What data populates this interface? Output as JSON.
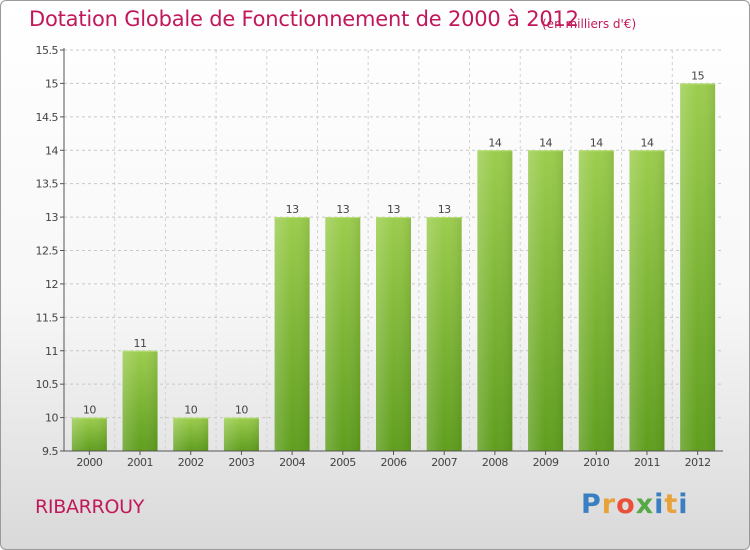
{
  "header": {
    "title": "Dotation Globale de Fonctionnement de 2000 à 2012",
    "unit": "(en milliers d'€)"
  },
  "footer": {
    "town": "RIBARROUY",
    "logo": "Proxiti",
    "logo_colors": [
      "#3a7fc1",
      "#e8a23a",
      "#e8503a",
      "#57a846",
      "#3a7fc1",
      "#e8a23a",
      "#3a7fc1"
    ]
  },
  "colors": {
    "bar_top": "#9ccd4e",
    "bar_bottom": "#5f9e1e",
    "title": "#c2185b",
    "axis": "#555555"
  },
  "chart_data": {
    "type": "bar",
    "categories": [
      "2000",
      "2001",
      "2002",
      "2003",
      "2004",
      "2005",
      "2006",
      "2007",
      "2008",
      "2009",
      "2010",
      "2011",
      "2012"
    ],
    "values": [
      10,
      11,
      10,
      10,
      13,
      13,
      13,
      13,
      14,
      14,
      14,
      14,
      15
    ],
    "data_labels": [
      "10",
      "11",
      "10",
      "10",
      "13",
      "13",
      "13",
      "13",
      "14",
      "14",
      "14",
      "14",
      "15"
    ],
    "yticks": [
      9.5,
      10,
      10.5,
      11,
      11.5,
      12,
      12.5,
      13,
      13.5,
      14,
      14.5,
      15,
      15.5
    ],
    "ylim": [
      9.5,
      15.5
    ],
    "grid": true
  }
}
